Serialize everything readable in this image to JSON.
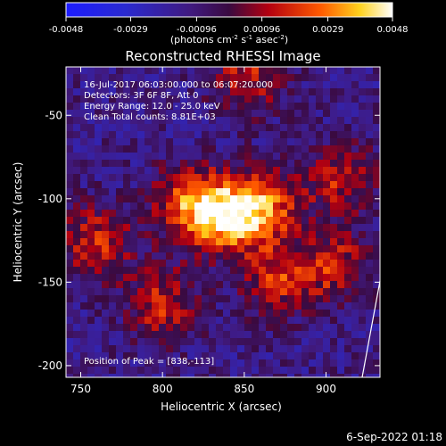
{
  "colorbar": {
    "ticks": [
      "-0.0048",
      "-0.0029",
      "-0.00096",
      "0.00096",
      "0.0029",
      "0.0048"
    ],
    "unit_main": "(photons cm",
    "unit_sup1": "-2",
    "unit_mid": " s",
    "unit_sup2": "-1",
    "unit_end": " asec",
    "unit_sup3": "-2",
    "unit_close": ")"
  },
  "plot": {
    "title": "Reconstructed RHESSI Image",
    "info_lines": [
      "16-Jul-2017 06:03:00.000 to 06:07:20.000",
      "Detectors: 3F 6F 8F, Att 0",
      "Energy Range: 12.0 - 25.0 keV",
      "Clean     Total counts: 8.81E+03"
    ],
    "peak_label": "Position of Peak = [838,-113]",
    "footer_date": "6-Sep-2022 01:18"
  },
  "chart_data": {
    "type": "heatmap",
    "title": "Reconstructed RHESSI Image",
    "xlabel": "Heliocentric X (arcsec)",
    "ylabel": "Heliocentric Y (arcsec)",
    "xlim": [
      741,
      933
    ],
    "ylim": [
      -207,
      -21
    ],
    "x_ticks": [
      750,
      800,
      850,
      900
    ],
    "y_ticks": [
      -50,
      -100,
      -150,
      -200
    ],
    "color_range": [
      -0.0048,
      0.0048
    ],
    "colormap": "rhessi-cool-hot",
    "peak": [
      838,
      -113
    ],
    "sources": [
      {
        "x": 838,
        "y": -110,
        "value": 0.0048
      },
      {
        "x": 862,
        "y": -105,
        "value": 0.0038
      },
      {
        "x": 815,
        "y": -103,
        "value": 0.0034
      },
      {
        "x": 760,
        "y": -126,
        "value": 0.003
      },
      {
        "x": 800,
        "y": -163,
        "value": 0.0028
      },
      {
        "x": 870,
        "y": -148,
        "value": 0.0028
      },
      {
        "x": 905,
        "y": -140,
        "value": 0.0027
      },
      {
        "x": 908,
        "y": -88,
        "value": 0.0026
      },
      {
        "x": 852,
        "y": -28,
        "value": 0.0026
      }
    ]
  }
}
